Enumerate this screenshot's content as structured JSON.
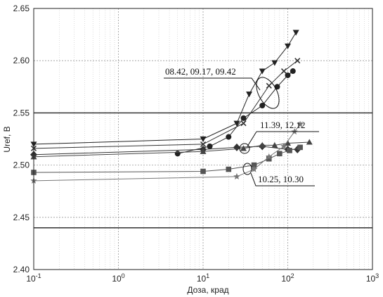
{
  "chart_data": {
    "type": "scatter",
    "title": "",
    "xlabel": "Доза, крад",
    "ylabel": "Uref, В",
    "x_scale": "log",
    "xlim": [
      0.1,
      1000
    ],
    "ylim": [
      2.4,
      2.65
    ],
    "grid": true,
    "x_major_ticks": [
      0.1,
      1,
      10,
      100,
      1000
    ],
    "x_tick_labels": [
      {
        "base": "10",
        "exp": "-1"
      },
      {
        "base": "10",
        "exp": "0"
      },
      {
        "base": "10",
        "exp": "1"
      },
      {
        "base": "10",
        "exp": "2"
      },
      {
        "base": "10",
        "exp": "3"
      }
    ],
    "y_ticks": [
      2.4,
      2.45,
      2.5,
      2.55,
      2.6,
      2.65
    ],
    "y_tick_labels": [
      "2.40",
      "2.45",
      "2.50",
      "2.55",
      "2.60",
      "2.65"
    ],
    "reference_lines_y": [
      2.44,
      2.55
    ],
    "series": [
      {
        "marker": "triangle-down",
        "color": "#222222",
        "points": [
          [
            0.1,
            2.52
          ],
          [
            10,
            2.525
          ],
          [
            25,
            2.54
          ],
          [
            35,
            2.568
          ],
          [
            50,
            2.59
          ],
          [
            70,
            2.598
          ],
          [
            100,
            2.614
          ],
          [
            125,
            2.627
          ]
        ]
      },
      {
        "marker": "circle",
        "color": "#222222",
        "points": [
          [
            5,
            2.511
          ],
          [
            12,
            2.518
          ],
          [
            20,
            2.527
          ],
          [
            30,
            2.545
          ],
          [
            50,
            2.557
          ],
          [
            75,
            2.575
          ],
          [
            100,
            2.586
          ],
          [
            115,
            2.59
          ]
        ]
      },
      {
        "marker": "x",
        "color": "#333333",
        "points": [
          [
            0.1,
            2.516
          ],
          [
            10,
            2.52
          ],
          [
            30,
            2.54
          ],
          [
            60,
            2.576
          ],
          [
            90,
            2.59
          ],
          [
            130,
            2.6
          ]
        ]
      },
      {
        "marker": "diamond",
        "color": "#333333",
        "points": [
          [
            0.1,
            2.51
          ],
          [
            10,
            2.515
          ],
          [
            25,
            2.517
          ],
          [
            50,
            2.518
          ],
          [
            100,
            2.515
          ],
          [
            130,
            2.515
          ]
        ]
      },
      {
        "marker": "triangle-up",
        "color": "#444444",
        "points": [
          [
            0.1,
            2.508
          ],
          [
            10,
            2.513
          ],
          [
            30,
            2.516
          ],
          [
            50,
            2.519
          ],
          [
            70,
            2.519
          ],
          [
            100,
            2.521
          ],
          [
            180,
            2.522
          ]
        ]
      },
      {
        "marker": "square",
        "color": "#555555",
        "points": [
          [
            0.1,
            2.493
          ],
          [
            10,
            2.494
          ],
          [
            20,
            2.496
          ],
          [
            40,
            2.5
          ],
          [
            60,
            2.506
          ],
          [
            80,
            2.511
          ],
          [
            105,
            2.514
          ],
          [
            140,
            2.517
          ]
        ]
      },
      {
        "marker": "star",
        "color": "#777777",
        "points": [
          [
            0.1,
            2.485
          ],
          [
            25,
            2.489
          ],
          [
            40,
            2.496
          ],
          [
            60,
            2.508
          ],
          [
            90,
            2.518
          ],
          [
            120,
            2.532
          ],
          [
            140,
            2.539
          ]
        ]
      }
    ],
    "annotations": [
      {
        "text": "08.42, 09.17, 09.42"
      },
      {
        "text": "11.39, 12.12"
      },
      {
        "text": "10.25, 10.30"
      }
    ]
  }
}
